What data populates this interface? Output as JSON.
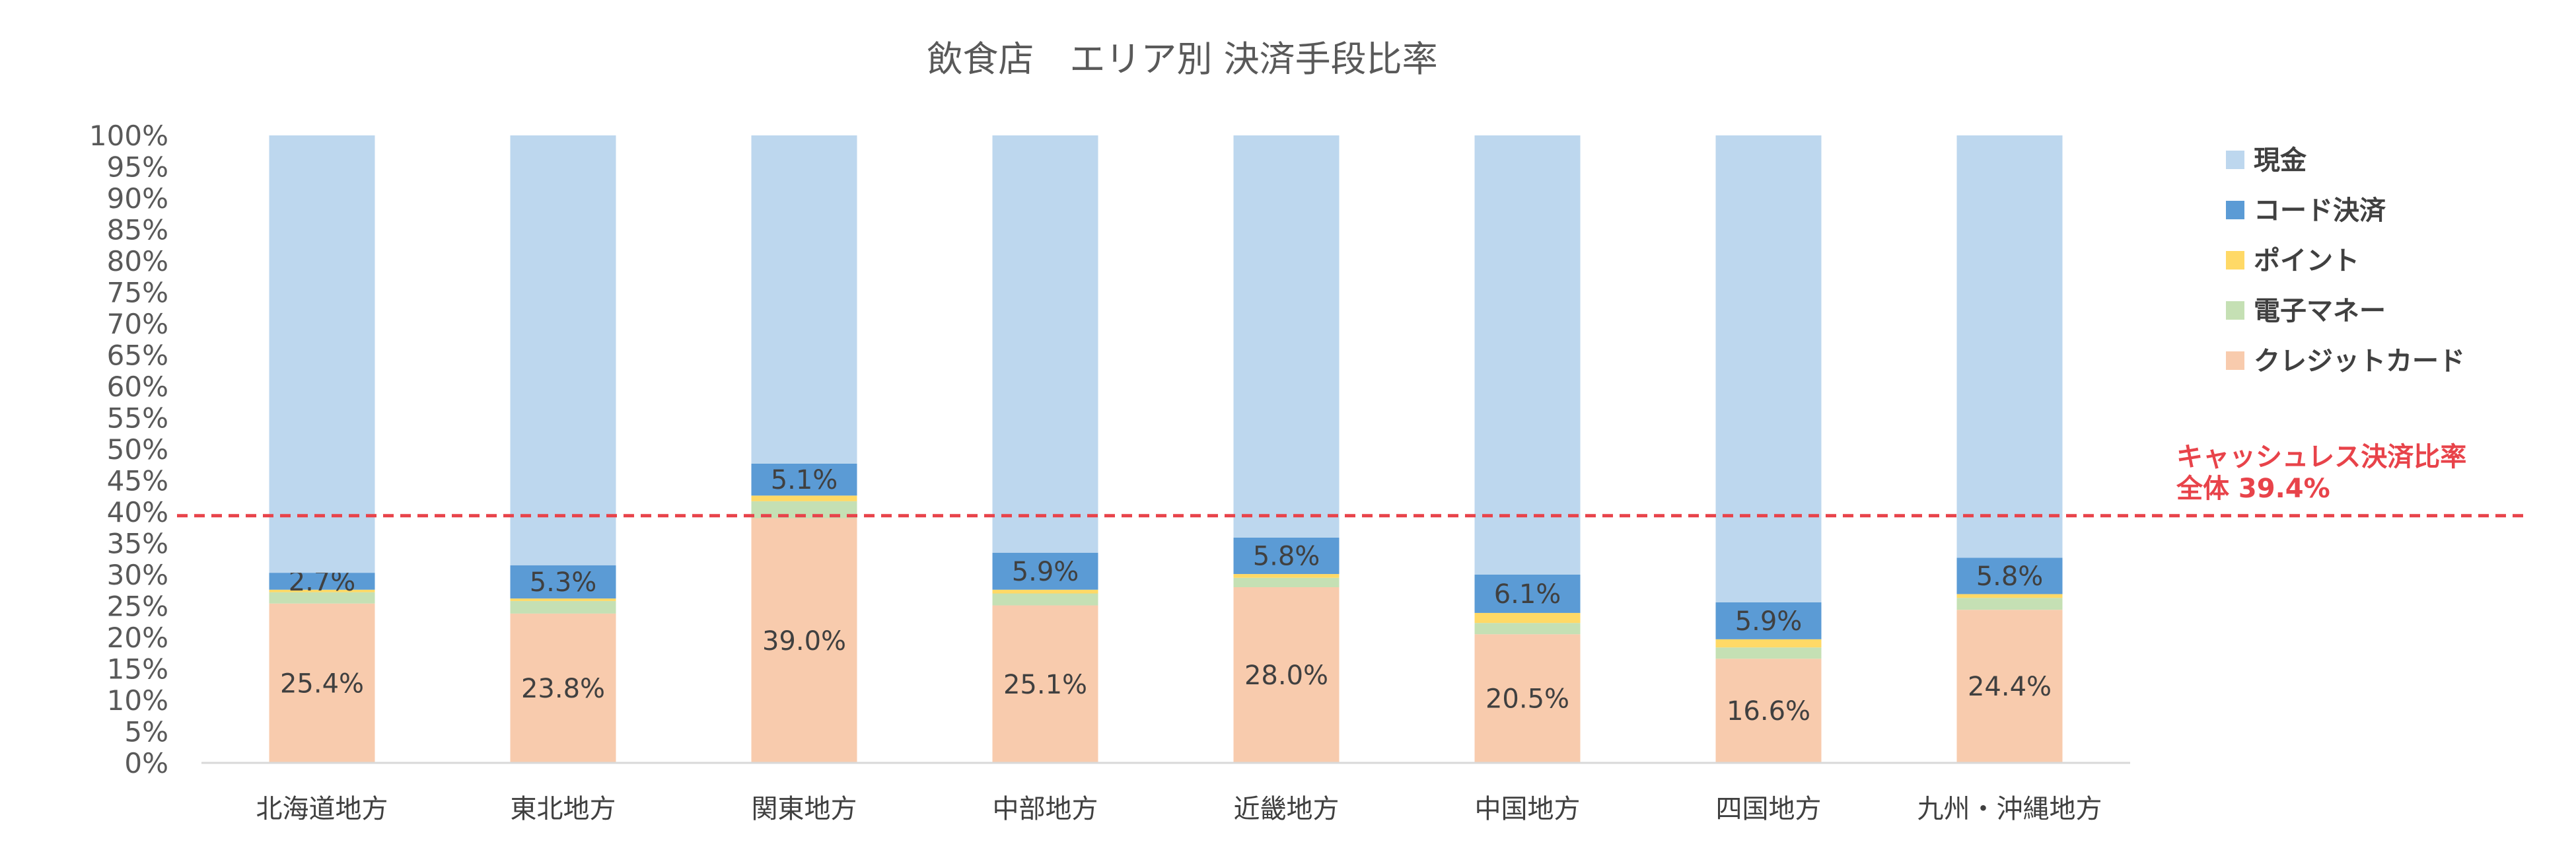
{
  "chart_data": {
    "type": "bar",
    "stacked": true,
    "percent": true,
    "title": "飲食店　エリア別 決済手段比率",
    "categories": [
      "北海道地方",
      "東北地方",
      "関東地方",
      "中部地方",
      "近畿地方",
      "中国地方",
      "四国地方",
      "九州・沖縄地方"
    ],
    "series": [
      {
        "name": "クレジットカード",
        "color": "#f8cbad",
        "values": [
          25.4,
          23.8,
          39.0,
          25.1,
          28.0,
          20.5,
          16.6,
          24.4
        ],
        "labels": [
          "25.4%",
          "23.8%",
          "39.0%",
          "25.1%",
          "28.0%",
          "20.5%",
          "16.6%",
          "24.4%"
        ]
      },
      {
        "name": "電子マネー",
        "color": "#c5e0b4",
        "values": [
          1.8,
          2.0,
          2.7,
          1.9,
          1.5,
          1.8,
          1.8,
          1.9
        ],
        "labels": [
          "",
          "",
          "",
          "",
          "",
          "",
          "",
          ""
        ]
      },
      {
        "name": "ポイント",
        "color": "#ffd966",
        "values": [
          0.4,
          0.4,
          0.9,
          0.6,
          0.6,
          1.6,
          1.3,
          0.6
        ],
        "labels": [
          "",
          "",
          "",
          "",
          "",
          "",
          "",
          ""
        ]
      },
      {
        "name": "コード決済",
        "color": "#5b9bd5",
        "values": [
          2.7,
          5.3,
          5.1,
          5.9,
          5.8,
          6.1,
          5.9,
          5.8
        ],
        "labels": [
          "2.7%",
          "5.3%",
          "5.1%",
          "5.9%",
          "5.8%",
          "6.1%",
          "5.9%",
          "5.8%"
        ]
      },
      {
        "name": "現金",
        "color": "#bdd7ee",
        "values": [
          69.7,
          68.5,
          52.3,
          66.5,
          64.1,
          70.0,
          74.4,
          67.3
        ],
        "labels": [
          "",
          "",
          "",
          "",
          "",
          "",
          "",
          ""
        ]
      }
    ],
    "legend_order": [
      "現金",
      "コード決済",
      "ポイント",
      "電子マネー",
      "クレジットカード"
    ],
    "legend_position": "right",
    "yticks": [
      "0%",
      "5%",
      "10%",
      "15%",
      "20%",
      "25%",
      "30%",
      "35%",
      "40%",
      "45%",
      "50%",
      "55%",
      "60%",
      "65%",
      "70%",
      "75%",
      "80%",
      "85%",
      "90%",
      "95%",
      "100%"
    ],
    "ylim": [
      0,
      100
    ],
    "reference_line": {
      "value": 39.4,
      "color": "#e8434a",
      "style": "dashed",
      "label_line1": "キャッシュレス決済比率",
      "label_line2": "全体 39.4%"
    }
  }
}
